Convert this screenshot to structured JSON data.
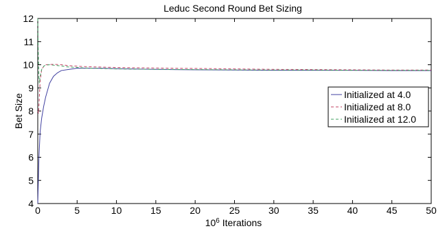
{
  "chart_data": {
    "type": "line",
    "title": "Leduc Second Round Bet Sizing",
    "xlabel": {
      "base": "10",
      "exponent": "6",
      "text": " Iterations"
    },
    "ylabel": "Bet Size",
    "xlim": [
      0,
      50
    ],
    "ylim": [
      4,
      12
    ],
    "xticks": [
      "0",
      "5",
      "10",
      "15",
      "20",
      "25",
      "30",
      "35",
      "40",
      "45",
      "50"
    ],
    "yticks": [
      "4",
      "5",
      "6",
      "7",
      "8",
      "9",
      "10",
      "11",
      "12"
    ],
    "grid": false,
    "legend_position": "right",
    "series": [
      {
        "name": "Initialized at 4.0",
        "color": "#4040a0",
        "dash": "solid",
        "x": [
          0,
          0.15,
          0.3,
          0.5,
          0.75,
          1,
          1.5,
          2,
          2.5,
          3,
          4,
          5,
          6,
          8,
          10,
          15,
          20,
          25,
          30,
          35,
          40,
          45,
          50
        ],
        "y": [
          4.0,
          6.0,
          7.1,
          7.7,
          8.2,
          8.6,
          9.2,
          9.5,
          9.65,
          9.75,
          9.8,
          9.85,
          9.85,
          9.85,
          9.83,
          9.8,
          9.78,
          9.77,
          9.76,
          9.76,
          9.76,
          9.75,
          9.75
        ]
      },
      {
        "name": "Initialized at 8.0",
        "color": "#c04060",
        "dash": "dashed",
        "x": [
          0,
          0.1,
          0.2,
          0.3,
          0.5,
          0.8,
          1,
          2,
          3,
          4,
          5,
          6,
          8,
          10,
          15,
          20,
          25,
          30,
          35,
          40,
          45,
          50
        ],
        "y": [
          8.0,
          7.9,
          8.6,
          9.3,
          9.8,
          9.95,
          10.0,
          10.02,
          10.0,
          9.96,
          9.94,
          9.92,
          9.9,
          9.88,
          9.86,
          9.84,
          9.82,
          9.8,
          9.79,
          9.78,
          9.77,
          9.77
        ]
      },
      {
        "name": "Initialized at 12.0",
        "color": "#40a060",
        "dash": "dashed",
        "x": [
          0,
          0.05,
          0.1,
          0.15,
          0.2,
          0.3,
          0.5,
          0.8,
          1,
          1.5,
          2,
          3,
          4,
          5,
          6,
          8,
          10,
          15,
          20,
          25,
          30,
          35,
          40,
          45,
          50
        ],
        "y": [
          12.0,
          10.8,
          10.0,
          9.4,
          9.2,
          9.5,
          9.8,
          9.95,
          9.98,
          10.0,
          9.98,
          9.95,
          9.9,
          9.88,
          9.86,
          9.84,
          9.82,
          9.8,
          9.79,
          9.78,
          9.77,
          9.77,
          9.76,
          9.76,
          9.76
        ]
      }
    ]
  }
}
